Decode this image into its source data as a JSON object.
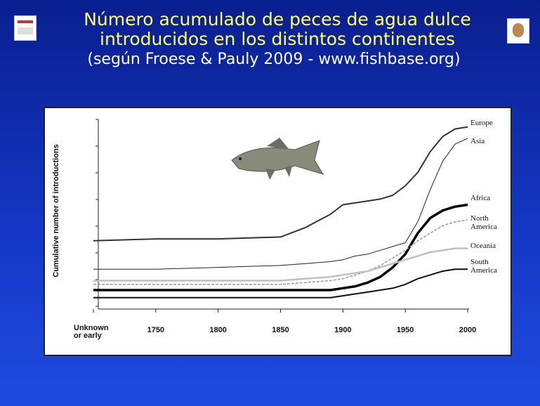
{
  "title": "Número acumulado de peces de agua dulce introducidos en los distintos continentes",
  "subtitle": "(según Froese & Pauly 2009 - www.fishbase.org)",
  "chart_data": {
    "type": "line",
    "y_label": "Cumulative number of introductions",
    "x": [
      1700,
      1750,
      1800,
      1850,
      1870,
      1890,
      1900,
      1910,
      1920,
      1930,
      1940,
      1950,
      1960,
      1970,
      1980,
      1990,
      2000
    ],
    "xlim": [
      1700,
      2000
    ],
    "xticks": [
      {
        "value": 1700,
        "label": "Unknown or early"
      },
      1750,
      1800,
      1850,
      1900,
      1950,
      2000
    ],
    "ylim": [
      0,
      10
    ],
    "series": [
      {
        "name": "Europe",
        "color": "#333333",
        "values": [
          3.6,
          3.7,
          3.7,
          3.8,
          4.3,
          5.0,
          5.5,
          5.6,
          5.7,
          5.8,
          6.0,
          6.5,
          7.2,
          8.3,
          9.1,
          9.5,
          9.6
        ]
      },
      {
        "name": "Asia",
        "color": "#222222",
        "values": [
          2.1,
          2.1,
          2.2,
          2.3,
          2.4,
          2.5,
          2.6,
          2.8,
          2.9,
          3.1,
          3.3,
          3.5,
          4.6,
          6.3,
          7.8,
          8.7,
          9.0
        ]
      },
      {
        "name": "Africa",
        "color": "#000000",
        "values": [
          1.0,
          1.0,
          1.0,
          1.0,
          1.0,
          1.0,
          1.1,
          1.2,
          1.4,
          1.7,
          2.2,
          2.9,
          4.0,
          4.8,
          5.2,
          5.4,
          5.5
        ]
      },
      {
        "name": "North America",
        "color": "#999999",
        "dashed": true,
        "values": [
          1.3,
          1.3,
          1.3,
          1.3,
          1.4,
          1.5,
          1.6,
          1.8,
          2.0,
          2.3,
          2.7,
          3.1,
          3.6,
          4.0,
          4.4,
          4.6,
          4.7
        ]
      },
      {
        "name": "Oceania",
        "color": "#c0c0c0",
        "values": [
          1.5,
          1.5,
          1.5,
          1.5,
          1.6,
          1.7,
          1.8,
          1.9,
          2.0,
          2.2,
          2.4,
          2.6,
          2.8,
          3.0,
          3.1,
          3.2,
          3.2
        ]
      },
      {
        "name": "South America",
        "color": "#111111",
        "values": [
          0.6,
          0.6,
          0.6,
          0.6,
          0.6,
          0.6,
          0.7,
          0.8,
          0.9,
          1.0,
          1.1,
          1.3,
          1.6,
          1.8,
          2.0,
          2.1,
          2.1
        ]
      }
    ]
  }
}
